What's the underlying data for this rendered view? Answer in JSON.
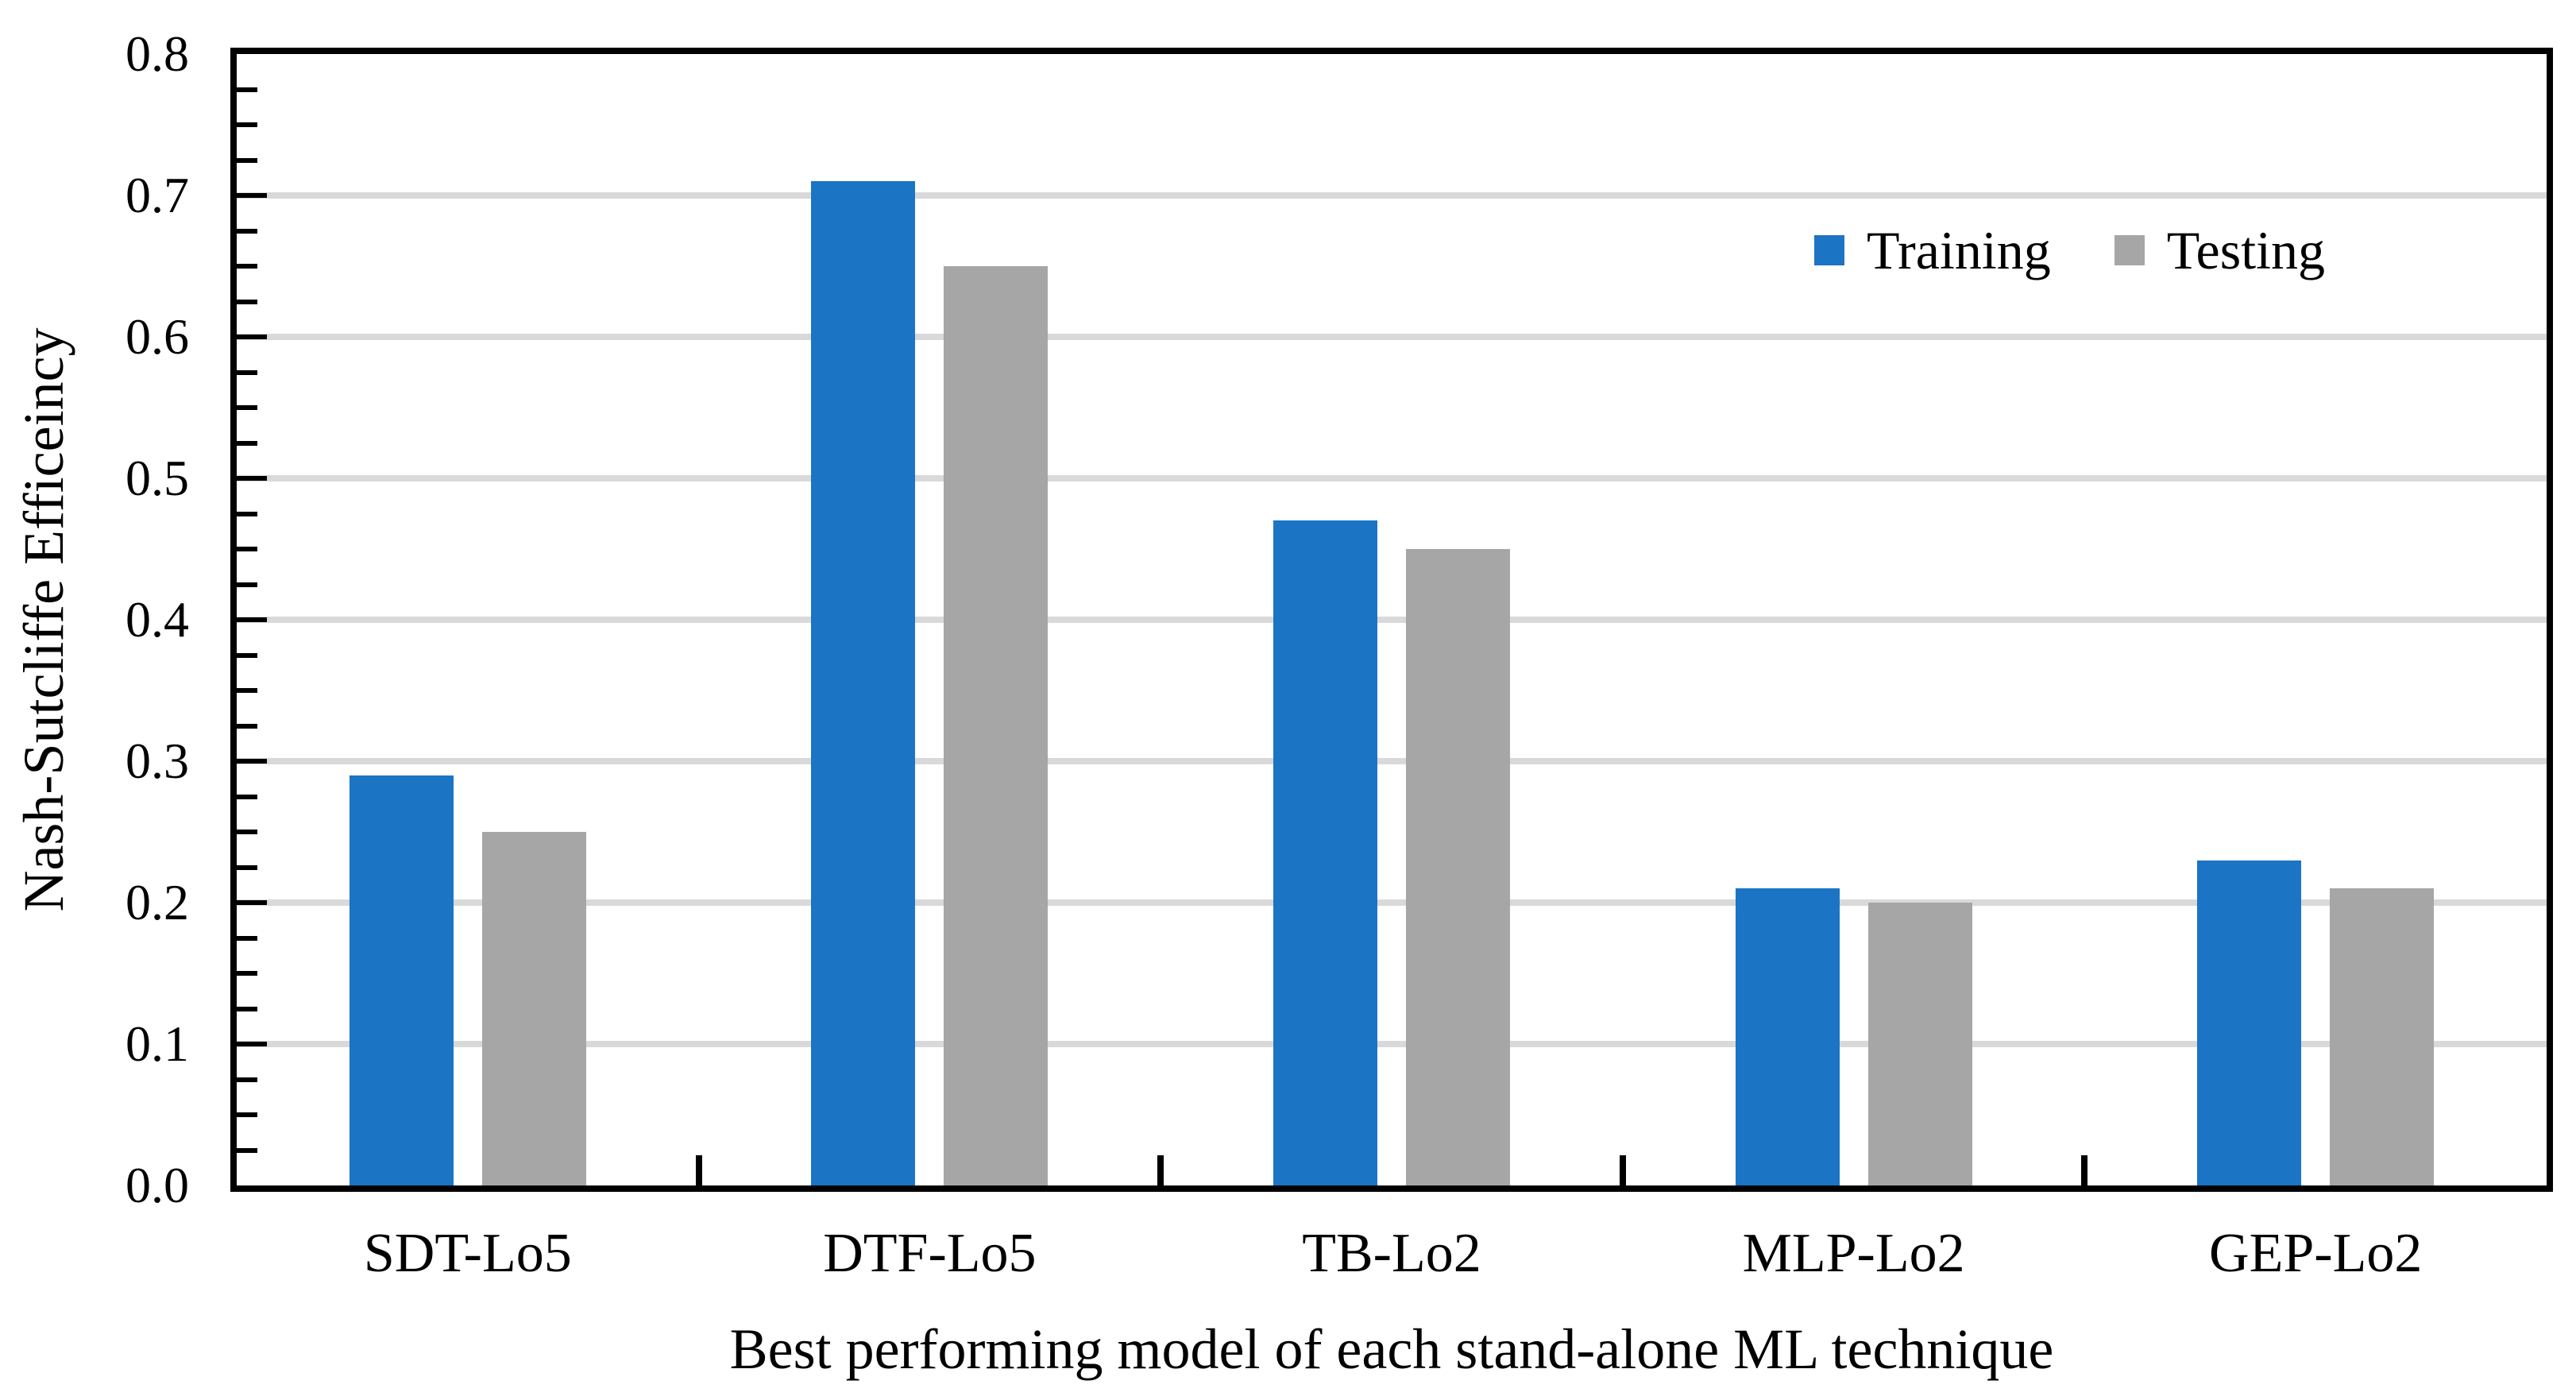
{
  "chart_data": {
    "type": "bar",
    "title": "",
    "xlabel": "Best performing model of each stand-alone ML technique",
    "ylabel": "Nash-Sutcliffe Efficeincy",
    "categories": [
      "SDT-Lo5",
      "DTF-Lo5",
      "TB-Lo2",
      "MLP-Lo2",
      "GEP-Lo2"
    ],
    "series": [
      {
        "name": "Training",
        "color": "#1B74C4",
        "values": [
          0.29,
          0.71,
          0.47,
          0.21,
          0.23
        ]
      },
      {
        "name": "Testing",
        "color": "#A6A6A6",
        "values": [
          0.25,
          0.65,
          0.45,
          0.2,
          0.21
        ]
      }
    ],
    "ylim": [
      0,
      0.8
    ],
    "yticks": [
      "0.0",
      "0.1",
      "0.2",
      "0.3",
      "0.4",
      "0.5",
      "0.6",
      "0.7",
      "0.8"
    ],
    "ytick_major_step": 0.1,
    "ytick_minor_step": 0.025,
    "grid": "horizontal",
    "gridline_color": "#D9D9D9",
    "axis_color": "#000000",
    "legend_position": "top-right-inside"
  }
}
